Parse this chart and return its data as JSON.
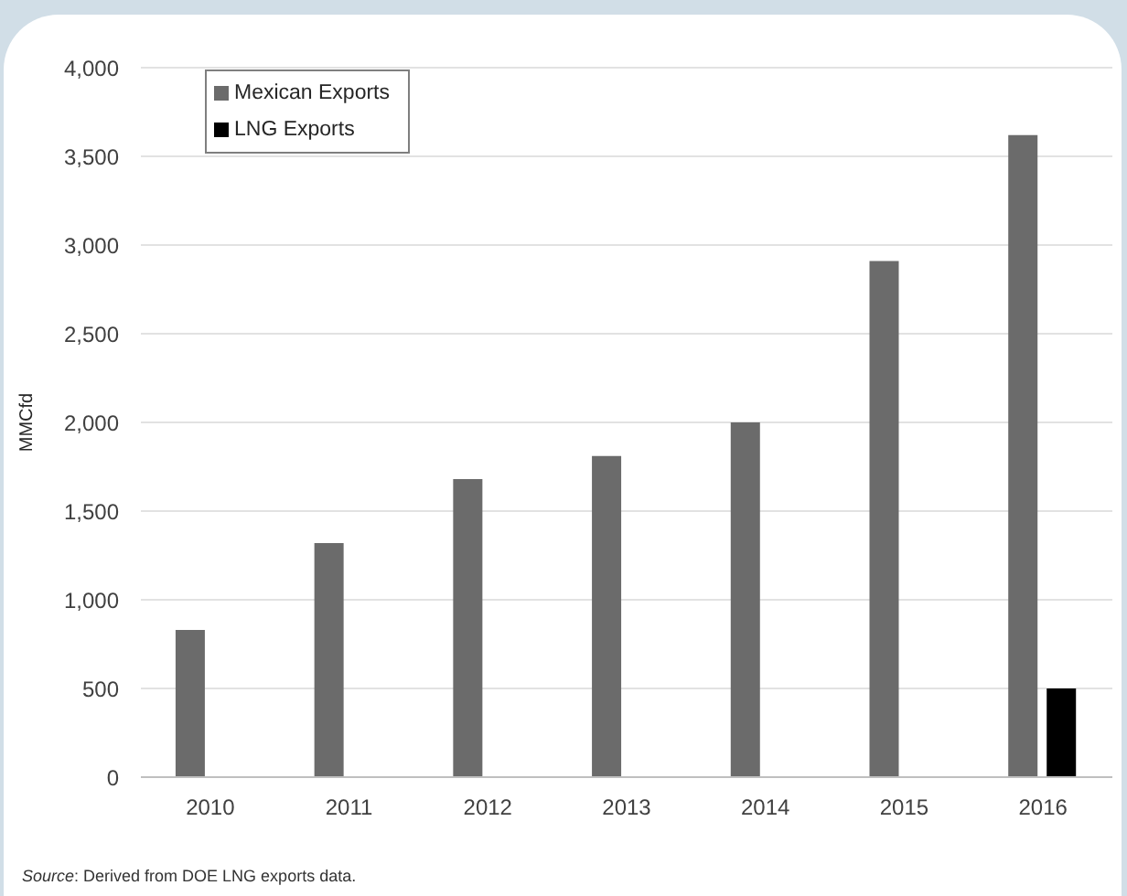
{
  "chart_data": {
    "type": "bar",
    "ylabel": "MMCfd",
    "categories": [
      "2010",
      "2011",
      "2012",
      "2013",
      "2014",
      "2015",
      "2016"
    ],
    "series": [
      {
        "name": "Mexican Exports",
        "color": "#6b6b6b",
        "values": [
          830,
          1320,
          1680,
          1810,
          2000,
          2910,
          3620
        ]
      },
      {
        "name": "LNG Exports",
        "color": "#000000",
        "values": [
          null,
          null,
          null,
          null,
          null,
          null,
          500
        ]
      }
    ],
    "ylim": [
      0,
      4000
    ],
    "yticks": [
      0,
      500,
      {
        "value": 1000,
        "label": "1,000"
      },
      {
        "value": 1500,
        "label": "1,500"
      },
      {
        "value": 2000,
        "label": "2,000"
      },
      {
        "value": 2500,
        "label": "2,500"
      },
      {
        "value": 3000,
        "label": "3,000"
      },
      {
        "value": 3500,
        "label": "3,500"
      },
      {
        "value": 4000,
        "label": "4,000"
      }
    ],
    "grid": "y",
    "legend": "top left",
    "annotations": [
      "Source: Derived from DOE LNG exports data."
    ]
  }
}
